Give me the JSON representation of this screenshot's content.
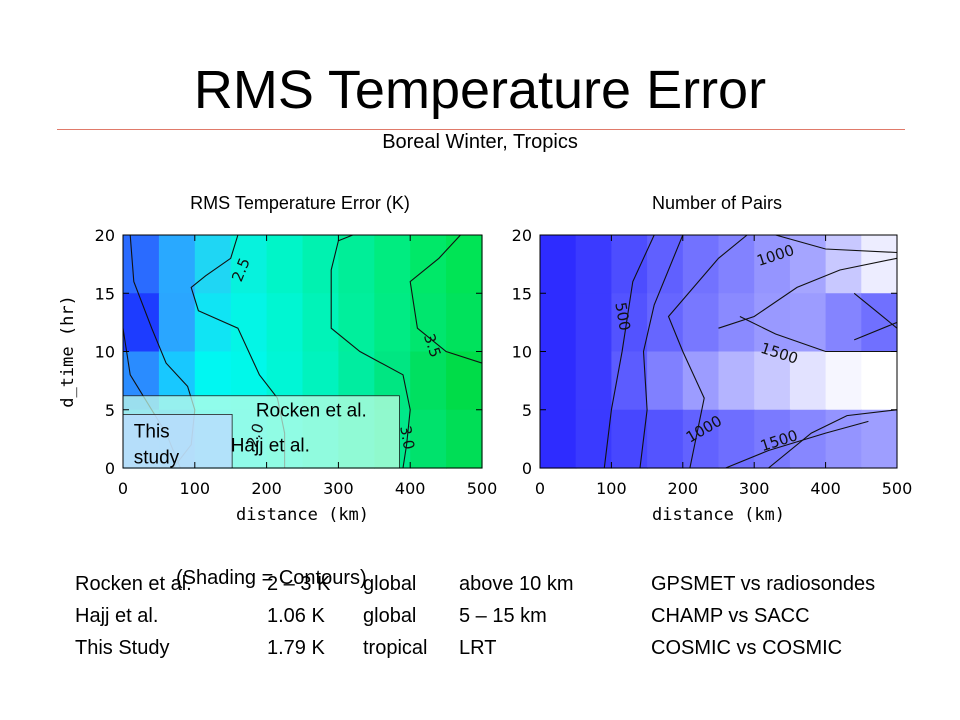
{
  "page": {
    "title": "RMS Temperature Error",
    "subtitle": "Boreal Winter, Tropics",
    "shading_note": "(Shading = Contours)"
  },
  "chart_data": [
    {
      "type": "heatmap",
      "title": "RMS Temperature Error (K)",
      "xlabel": "distance (km)",
      "ylabel": "d_time (hr)",
      "xlim": [
        0,
        500
      ],
      "ylim": [
        0,
        20
      ],
      "xticks": [
        "0",
        "100",
        "200",
        "300",
        "400",
        "500"
      ],
      "yticks": [
        "0",
        "5",
        "10",
        "15",
        "20"
      ],
      "x_edges": [
        0,
        50,
        100,
        150,
        200,
        250,
        300,
        350,
        400,
        450,
        500
      ],
      "y_edges": [
        0,
        5,
        10,
        15,
        20
      ],
      "cells": [
        [
          "#2a6bff",
          "#29a9ff",
          "#1fd6f4",
          "#07f2dd",
          "#00f5c8",
          "#00f2b0",
          "#00ee98",
          "#00ec80",
          "#00e868",
          "#00e455"
        ],
        [
          "#1d3cff",
          "#2aa6ff",
          "#10e4f4",
          "#04f5e6",
          "#00f6d2",
          "#00f3b8",
          "#00ef9c",
          "#00eb84",
          "#00e66e",
          "#00e25c"
        ],
        [
          "#2a8cff",
          "#18c8ff",
          "#00f7f2",
          "#00f8ea",
          "#00f6d6",
          "#00f3be",
          "#00eda0",
          "#00e682",
          "#00e060",
          "#00dc48"
        ],
        [
          "#2ab0ff",
          "#1ab0ff",
          "#00e4f8",
          "#00f0ee",
          "#00f2da",
          "#00f1c4",
          "#00eda6",
          "#00e88a",
          "#00e26c",
          "#00de56"
        ]
      ],
      "contour_labels": [
        {
          "text": "2.5",
          "x": 165,
          "y": 17.0,
          "rot": -68
        },
        {
          "text": "3.5",
          "x": 430,
          "y": 10.5,
          "rot": 72
        },
        {
          "text": "2.0",
          "x": 185,
          "y": 2.8,
          "rot": -72
        },
        {
          "text": "3.0",
          "x": 395,
          "y": 2.6,
          "rot": 80
        }
      ],
      "contours": [
        [
          [
            10,
            20
          ],
          [
            15,
            16
          ],
          [
            40,
            12
          ],
          [
            60,
            9
          ],
          [
            90,
            7
          ],
          [
            100,
            5
          ],
          [
            95,
            2
          ],
          [
            70,
            0
          ]
        ],
        [
          [
            160,
            20
          ],
          [
            150,
            18
          ],
          [
            115,
            16.5
          ],
          [
            95,
            15.5
          ],
          [
            105,
            13.5
          ],
          [
            160,
            12
          ],
          [
            190,
            8
          ],
          [
            215,
            6
          ],
          [
            225,
            3
          ],
          [
            225,
            0
          ]
        ],
        [
          [
            320,
            20
          ],
          [
            300,
            19.5
          ],
          [
            290,
            17
          ],
          [
            290,
            12
          ],
          [
            330,
            10
          ],
          [
            390,
            8
          ],
          [
            400,
            5
          ],
          [
            395,
            2
          ],
          [
            390,
            0
          ]
        ],
        [
          [
            470,
            20
          ],
          [
            440,
            18
          ],
          [
            400,
            16
          ],
          [
            410,
            12
          ],
          [
            450,
            10
          ],
          [
            500,
            9
          ]
        ],
        [
          [
            0,
            12
          ],
          [
            10,
            8
          ],
          [
            40,
            5
          ],
          [
            60,
            3
          ],
          [
            80,
            0
          ]
        ]
      ],
      "annotations": [
        {
          "text": "Rocken et al.",
          "x": 185,
          "y": 4.4
        },
        {
          "text": "Hajj et al.",
          "x": 150,
          "y": 1.4
        },
        {
          "text": "This",
          "x": 15,
          "y": 2.6
        },
        {
          "text": "study",
          "x": 15,
          "y": 0.4
        }
      ],
      "overlay_boxes": [
        {
          "name": "rocken-box",
          "x0": 0,
          "x1": 385,
          "y0": 0,
          "y1": 6.2,
          "fill": "#c8ffe8"
        },
        {
          "name": "hajj-box",
          "x0": 0,
          "x1": 200,
          "y0": 0,
          "y1": 0,
          "fill": "#ffffff"
        },
        {
          "name": "this-study-box",
          "x0": 0,
          "x1": 152,
          "y0": 0,
          "y1": 4.6,
          "fill": "#bfd9ff"
        }
      ]
    },
    {
      "type": "heatmap",
      "title": "Number of Pairs",
      "xlabel": "distance (km)",
      "ylabel": "",
      "xlim": [
        0,
        500
      ],
      "ylim": [
        0,
        20
      ],
      "xticks": [
        "0",
        "100",
        "200",
        "300",
        "400",
        "500"
      ],
      "yticks": [
        "0",
        "5",
        "10",
        "15",
        "20"
      ],
      "x_edges": [
        0,
        50,
        100,
        150,
        200,
        250,
        300,
        350,
        400,
        450,
        500
      ],
      "y_edges": [
        0,
        5,
        10,
        15,
        20
      ],
      "cells": [
        [
          "#2e2cff",
          "#3b3aff",
          "#4d4dff",
          "#6060ff",
          "#7272ff",
          "#8282ff",
          "#9595ff",
          "#a5a5ff",
          "#c8c8ff",
          "#ededff"
        ],
        [
          "#2e2cff",
          "#3b3aff",
          "#5353ff",
          "#6666ff",
          "#7878ff",
          "#8a8aff",
          "#9999ff",
          "#9c9cff",
          "#8484ff",
          "#7070ff"
        ],
        [
          "#2e2cff",
          "#3b3aff",
          "#5c5cff",
          "#8080ff",
          "#9c9cff",
          "#b4b4ff",
          "#c8c8ff",
          "#e2e2ff",
          "#f6f6ff",
          "#ffffff"
        ],
        [
          "#2e2cff",
          "#3a3aff",
          "#4747ff",
          "#5454ff",
          "#6262ff",
          "#6e6eff",
          "#7a7aff",
          "#8787ff",
          "#9494ff",
          "#9e9eff"
        ]
      ],
      "contour_labels": [
        {
          "text": "1000",
          "x": 330,
          "y": 18.2,
          "rot": -18
        },
        {
          "text": "500",
          "x": 115,
          "y": 13.0,
          "rot": 80
        },
        {
          "text": "1500",
          "x": 335,
          "y": 9.8,
          "rot": 18
        },
        {
          "text": "1000",
          "x": 230,
          "y": 3.3,
          "rot": -30
        },
        {
          "text": "1500",
          "x": 335,
          "y": 2.3,
          "rot": -18
        }
      ],
      "contours": [
        [
          [
            90,
            0
          ],
          [
            100,
            5
          ],
          [
            115,
            10
          ],
          [
            130,
            16
          ],
          [
            160,
            20
          ]
        ],
        [
          [
            140,
            0
          ],
          [
            150,
            5
          ],
          [
            145,
            10
          ],
          [
            160,
            14
          ],
          [
            200,
            20
          ]
        ],
        [
          [
            210,
            0
          ],
          [
            230,
            6
          ],
          [
            200,
            10
          ],
          [
            180,
            13
          ],
          [
            250,
            18
          ],
          [
            290,
            20
          ]
        ],
        [
          [
            330,
            20
          ],
          [
            400,
            18.8
          ],
          [
            500,
            18.5
          ]
        ],
        [
          [
            280,
            13
          ],
          [
            330,
            11.5
          ],
          [
            400,
            10
          ],
          [
            500,
            10
          ]
        ],
        [
          [
            250,
            12
          ],
          [
            300,
            13
          ],
          [
            360,
            15.5
          ],
          [
            420,
            17
          ],
          [
            500,
            18
          ]
        ],
        [
          [
            440,
            15
          ],
          [
            470,
            13.5
          ],
          [
            500,
            12
          ]
        ],
        [
          [
            440,
            11
          ],
          [
            500,
            12.5
          ]
        ],
        [
          [
            320,
            0
          ],
          [
            380,
            3
          ],
          [
            430,
            4.5
          ],
          [
            500,
            5
          ]
        ],
        [
          [
            260,
            0
          ],
          [
            320,
            1.5
          ],
          [
            400,
            3
          ],
          [
            460,
            4
          ]
        ]
      ],
      "annotations": []
    }
  ],
  "comparison_table": {
    "rows": [
      {
        "source": "Rocken et al.",
        "error": "2 – 3 K",
        "coverage": "global",
        "altitude": "above 10 km",
        "method": "GPSMET vs radiosondes"
      },
      {
        "source": "Hajj et al.",
        "error": "1.06 K",
        "coverage": "global",
        "altitude": "5 – 15 km",
        "method": "CHAMP vs SACC"
      },
      {
        "source": "This Study",
        "error": "1.79 K",
        "coverage": "tropical",
        "altitude": "LRT",
        "method": "COSMIC vs COSMIC"
      }
    ]
  }
}
